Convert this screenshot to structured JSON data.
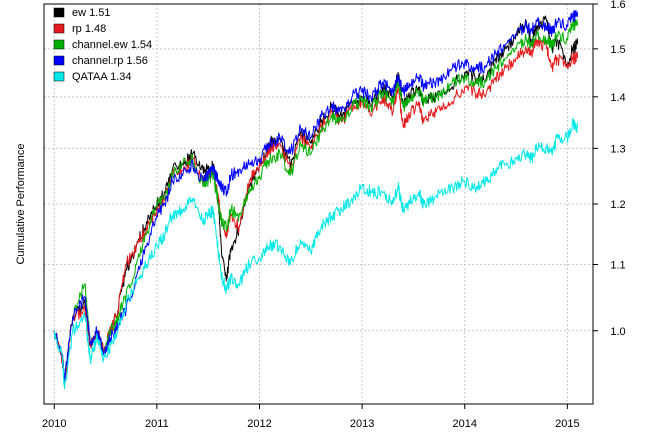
{
  "chart_data": {
    "type": "line",
    "ylabel": "Cumulative Performance",
    "y_scale": "log",
    "ylim": [
      0.9,
      1.6
    ],
    "xlim": [
      2009.9,
      2015.25
    ],
    "x_ticks": [
      2010,
      2011,
      2012,
      2013,
      2014,
      2015
    ],
    "y_ticks": [
      1.0,
      1.1,
      1.2,
      1.3,
      1.4,
      1.5,
      1.6
    ],
    "grid": true,
    "legend_position": "top-left",
    "legend": [
      {
        "label": "ew 1.51",
        "color": "#000000"
      },
      {
        "label": "rp 1.48",
        "color": "#e41a1c"
      },
      {
        "label": "channel.ew 1.54",
        "color": "#00b000"
      },
      {
        "label": "channel.rp 1.56",
        "color": "#0000ff"
      },
      {
        "label": "QATAA 1.34",
        "color": "#00e8e8"
      }
    ],
    "series": [
      {
        "name": "ew",
        "color": "#000000",
        "x": [
          2010.0,
          2010.08,
          2010.1,
          2010.18,
          2010.3,
          2010.35,
          2010.42,
          2010.48,
          2010.55,
          2010.62,
          2010.7,
          2010.8,
          2010.9,
          2011.0,
          2011.08,
          2011.15,
          2011.25,
          2011.35,
          2011.45,
          2011.5,
          2011.55,
          2011.6,
          2011.63,
          2011.68,
          2011.72,
          2011.8,
          2011.9,
          2012.0,
          2012.1,
          2012.2,
          2012.3,
          2012.4,
          2012.5,
          2012.6,
          2012.7,
          2012.8,
          2012.9,
          2013.0,
          2013.1,
          2013.2,
          2013.3,
          2013.35,
          2013.4,
          2013.45,
          2013.55,
          2013.6,
          2013.7,
          2013.8,
          2013.9,
          2014.0,
          2014.1,
          2014.2,
          2014.3,
          2014.4,
          2014.5,
          2014.6,
          2014.65,
          2014.7,
          2014.8,
          2014.85,
          2014.9,
          2015.0,
          2015.05,
          2015.1
        ],
        "values": [
          1.0,
          0.96,
          0.93,
          1.02,
          1.04,
          0.98,
          1.0,
          0.97,
          1.0,
          1.03,
          1.09,
          1.13,
          1.17,
          1.2,
          1.22,
          1.26,
          1.27,
          1.29,
          1.26,
          1.26,
          1.27,
          1.2,
          1.12,
          1.08,
          1.12,
          1.16,
          1.23,
          1.27,
          1.31,
          1.32,
          1.27,
          1.33,
          1.31,
          1.35,
          1.38,
          1.36,
          1.39,
          1.4,
          1.39,
          1.42,
          1.4,
          1.45,
          1.38,
          1.4,
          1.42,
          1.39,
          1.4,
          1.41,
          1.43,
          1.45,
          1.44,
          1.43,
          1.48,
          1.5,
          1.53,
          1.56,
          1.51,
          1.55,
          1.56,
          1.5,
          1.52,
          1.46,
          1.5,
          1.51
        ]
      },
      {
        "name": "rp",
        "color": "#e41a1c",
        "x": [
          2010.0,
          2010.08,
          2010.1,
          2010.18,
          2010.3,
          2010.35,
          2010.42,
          2010.48,
          2010.55,
          2010.62,
          2010.7,
          2010.8,
          2010.9,
          2011.0,
          2011.08,
          2011.15,
          2011.25,
          2011.35,
          2011.45,
          2011.5,
          2011.55,
          2011.6,
          2011.63,
          2011.68,
          2011.72,
          2011.8,
          2011.9,
          2012.0,
          2012.1,
          2012.2,
          2012.3,
          2012.4,
          2012.5,
          2012.6,
          2012.7,
          2012.8,
          2012.9,
          2013.0,
          2013.1,
          2013.2,
          2013.3,
          2013.35,
          2013.4,
          2013.45,
          2013.55,
          2013.6,
          2013.7,
          2013.8,
          2013.9,
          2014.0,
          2014.1,
          2014.2,
          2014.3,
          2014.4,
          2014.5,
          2014.6,
          2014.65,
          2014.7,
          2014.8,
          2014.85,
          2014.9,
          2015.0,
          2015.05,
          2015.1
        ],
        "values": [
          1.0,
          0.96,
          0.93,
          1.02,
          1.03,
          0.98,
          1.0,
          0.97,
          1.0,
          1.03,
          1.1,
          1.13,
          1.16,
          1.19,
          1.21,
          1.25,
          1.26,
          1.28,
          1.24,
          1.25,
          1.26,
          1.21,
          1.17,
          1.15,
          1.18,
          1.16,
          1.24,
          1.27,
          1.3,
          1.31,
          1.26,
          1.32,
          1.3,
          1.34,
          1.37,
          1.35,
          1.38,
          1.39,
          1.37,
          1.4,
          1.37,
          1.42,
          1.34,
          1.36,
          1.39,
          1.35,
          1.37,
          1.38,
          1.4,
          1.42,
          1.41,
          1.4,
          1.44,
          1.46,
          1.48,
          1.5,
          1.49,
          1.52,
          1.5,
          1.46,
          1.48,
          1.46,
          1.48,
          1.48
        ]
      },
      {
        "name": "channel.ew",
        "color": "#00b000",
        "x": [
          2010.0,
          2010.08,
          2010.1,
          2010.18,
          2010.3,
          2010.35,
          2010.42,
          2010.48,
          2010.55,
          2010.62,
          2010.7,
          2010.8,
          2010.9,
          2011.0,
          2011.08,
          2011.15,
          2011.25,
          2011.35,
          2011.45,
          2011.5,
          2011.55,
          2011.6,
          2011.63,
          2011.68,
          2011.72,
          2011.8,
          2011.9,
          2012.0,
          2012.1,
          2012.2,
          2012.3,
          2012.4,
          2012.5,
          2012.6,
          2012.7,
          2012.8,
          2012.9,
          2013.0,
          2013.1,
          2013.2,
          2013.3,
          2013.35,
          2013.4,
          2013.45,
          2013.55,
          2013.6,
          2013.7,
          2013.8,
          2013.9,
          2014.0,
          2014.1,
          2014.2,
          2014.3,
          2014.4,
          2014.5,
          2014.6,
          2014.65,
          2014.7,
          2014.8,
          2014.85,
          2014.9,
          2015.0,
          2015.05,
          2015.1
        ],
        "values": [
          1.0,
          0.96,
          0.93,
          1.02,
          1.07,
          0.98,
          1.0,
          0.97,
          1.0,
          1.02,
          1.05,
          1.1,
          1.15,
          1.2,
          1.21,
          1.25,
          1.27,
          1.28,
          1.23,
          1.24,
          1.25,
          1.2,
          1.17,
          1.16,
          1.19,
          1.18,
          1.22,
          1.25,
          1.28,
          1.29,
          1.25,
          1.31,
          1.29,
          1.33,
          1.36,
          1.35,
          1.38,
          1.39,
          1.38,
          1.41,
          1.39,
          1.43,
          1.38,
          1.39,
          1.41,
          1.39,
          1.4,
          1.41,
          1.43,
          1.44,
          1.43,
          1.43,
          1.46,
          1.48,
          1.5,
          1.52,
          1.51,
          1.53,
          1.52,
          1.51,
          1.53,
          1.52,
          1.55,
          1.56
        ]
      },
      {
        "name": "channel.rp",
        "color": "#0000ff",
        "x": [
          2010.0,
          2010.08,
          2010.1,
          2010.18,
          2010.3,
          2010.35,
          2010.42,
          2010.48,
          2010.55,
          2010.62,
          2010.7,
          2010.8,
          2010.9,
          2011.0,
          2011.08,
          2011.15,
          2011.25,
          2011.35,
          2011.45,
          2011.5,
          2011.55,
          2011.6,
          2011.63,
          2011.68,
          2011.72,
          2011.8,
          2011.9,
          2012.0,
          2012.1,
          2012.2,
          2012.3,
          2012.4,
          2012.5,
          2012.6,
          2012.7,
          2012.8,
          2012.9,
          2013.0,
          2013.1,
          2013.2,
          2013.3,
          2013.35,
          2013.4,
          2013.45,
          2013.55,
          2013.6,
          2013.7,
          2013.8,
          2013.9,
          2014.0,
          2014.1,
          2014.2,
          2014.3,
          2014.4,
          2014.5,
          2014.6,
          2014.65,
          2014.7,
          2014.8,
          2014.85,
          2014.9,
          2015.0,
          2015.05,
          2015.1
        ],
        "values": [
          1.0,
          0.96,
          0.93,
          1.02,
          1.05,
          0.98,
          1.0,
          0.97,
          0.99,
          1.01,
          1.03,
          1.08,
          1.13,
          1.18,
          1.2,
          1.24,
          1.25,
          1.27,
          1.24,
          1.25,
          1.26,
          1.24,
          1.23,
          1.22,
          1.25,
          1.26,
          1.27,
          1.28,
          1.31,
          1.32,
          1.29,
          1.34,
          1.32,
          1.36,
          1.38,
          1.37,
          1.4,
          1.41,
          1.4,
          1.43,
          1.41,
          1.44,
          1.41,
          1.42,
          1.44,
          1.42,
          1.43,
          1.44,
          1.46,
          1.47,
          1.46,
          1.46,
          1.49,
          1.51,
          1.53,
          1.55,
          1.54,
          1.56,
          1.55,
          1.54,
          1.56,
          1.55,
          1.57,
          1.58
        ]
      },
      {
        "name": "QATAA",
        "color": "#00e8e8",
        "x": [
          2010.0,
          2010.08,
          2010.1,
          2010.18,
          2010.3,
          2010.35,
          2010.42,
          2010.48,
          2010.55,
          2010.62,
          2010.7,
          2010.8,
          2010.9,
          2011.0,
          2011.08,
          2011.15,
          2011.25,
          2011.35,
          2011.45,
          2011.5,
          2011.55,
          2011.6,
          2011.63,
          2011.68,
          2011.72,
          2011.8,
          2011.9,
          2012.0,
          2012.1,
          2012.2,
          2012.3,
          2012.4,
          2012.5,
          2012.6,
          2012.7,
          2012.8,
          2012.9,
          2013.0,
          2013.1,
          2013.2,
          2013.3,
          2013.35,
          2013.4,
          2013.45,
          2013.55,
          2013.6,
          2013.7,
          2013.8,
          2013.9,
          2014.0,
          2014.1,
          2014.2,
          2014.3,
          2014.4,
          2014.5,
          2014.6,
          2014.65,
          2014.7,
          2014.8,
          2014.85,
          2014.9,
          2015.0,
          2015.05,
          2015.1
        ],
        "values": [
          1.0,
          0.96,
          0.92,
          1.0,
          1.02,
          0.96,
          0.99,
          0.96,
          0.98,
          1.0,
          1.04,
          1.07,
          1.1,
          1.13,
          1.15,
          1.18,
          1.19,
          1.21,
          1.17,
          1.18,
          1.19,
          1.12,
          1.08,
          1.06,
          1.08,
          1.07,
          1.1,
          1.11,
          1.13,
          1.13,
          1.1,
          1.14,
          1.12,
          1.16,
          1.18,
          1.19,
          1.21,
          1.23,
          1.22,
          1.22,
          1.2,
          1.23,
          1.19,
          1.2,
          1.22,
          1.2,
          1.21,
          1.22,
          1.23,
          1.24,
          1.23,
          1.24,
          1.26,
          1.27,
          1.28,
          1.29,
          1.28,
          1.3,
          1.3,
          1.29,
          1.32,
          1.32,
          1.35,
          1.34
        ]
      }
    ]
  }
}
